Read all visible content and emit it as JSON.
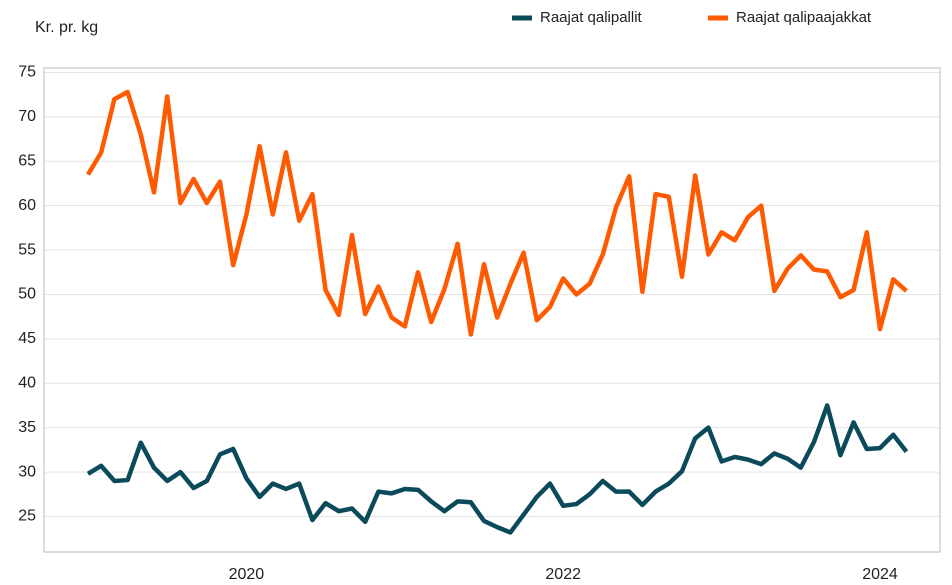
{
  "chart_data": {
    "type": "line",
    "y_label": "Kr. pr. kg",
    "categories": [
      null,
      null,
      null,
      null,
      null,
      null,
      null,
      null,
      null,
      null,
      null,
      null,
      "2020",
      null,
      null,
      null,
      null,
      null,
      null,
      null,
      null,
      null,
      null,
      null,
      null,
      null,
      null,
      null,
      null,
      null,
      null,
      null,
      null,
      null,
      null,
      null,
      "2022",
      null,
      null,
      null,
      null,
      null,
      null,
      null,
      null,
      null,
      null,
      null,
      null,
      null,
      null,
      null,
      null,
      null,
      null,
      null,
      null,
      null,
      null,
      null,
      "2024",
      null,
      null
    ],
    "series": [
      {
        "name": "Raajat qalipallit",
        "color": "#0b4a5a",
        "values": [
          29.8,
          30.7,
          29,
          29.1,
          33.3,
          30.5,
          29,
          30,
          28.2,
          29,
          32,
          32.6,
          29.3,
          27.2,
          28.7,
          28.1,
          28.7,
          24.6,
          26.5,
          25.6,
          25.9,
          24.4,
          27.8,
          27.6,
          28.1,
          28,
          26.7,
          25.6,
          26.7,
          26.6,
          24.5,
          23.8,
          23.2,
          25.2,
          27.2,
          28.7,
          26.2,
          26.4,
          27.5,
          29,
          27.8,
          27.8,
          26.3,
          27.8,
          28.7,
          30.1,
          33.8,
          35,
          31.2,
          31.7,
          31.4,
          30.9,
          32.1,
          31.5,
          30.5,
          33.4,
          37.5,
          31.9,
          35.6,
          32.6,
          32.7,
          34.2,
          32.3
        ]
      },
      {
        "name": "Raajat qalipaajakkat",
        "color": "#ff5a00",
        "values": [
          63.5,
          66,
          72,
          72.8,
          68,
          61.5,
          72.3,
          60.3,
          63,
          60.3,
          62.7,
          53.3,
          59,
          66.7,
          59,
          66,
          58.3,
          61.3,
          50.5,
          47.7,
          56.7,
          47.8,
          50.9,
          47.4,
          46.4,
          52.5,
          46.9,
          50.6,
          55.7,
          45.5,
          53.4,
          47.4,
          51.2,
          54.7,
          47.1,
          48.6,
          51.8,
          50,
          51.2,
          54.5,
          59.8,
          63.3,
          50.3,
          61.3,
          61,
          52,
          63.4,
          54.5,
          57,
          56.1,
          58.7,
          60,
          50.4,
          52.9,
          54.4,
          52.8,
          52.6,
          49.7,
          50.5,
          57,
          46.1,
          51.7,
          50.4
        ]
      }
    ],
    "ylim": [
      21,
      75.5
    ],
    "yticks": [
      25,
      30,
      35,
      40,
      45,
      50,
      55,
      60,
      65,
      70,
      75
    ],
    "grid": true,
    "legend": "top-right"
  }
}
